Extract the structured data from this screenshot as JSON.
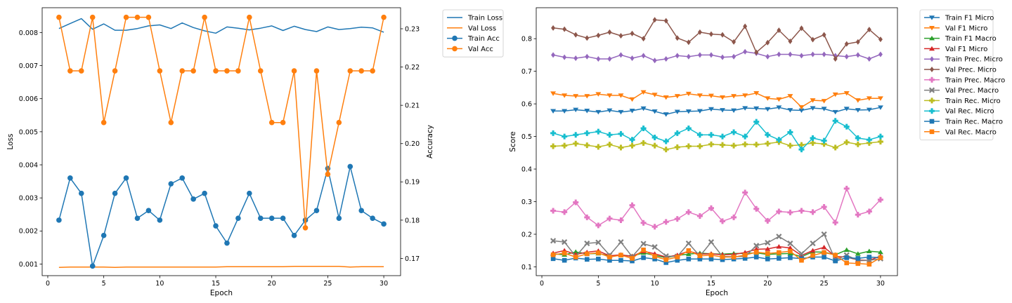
{
  "colors": {
    "blue": "#1f77b4",
    "orange": "#ff7f0e",
    "green": "#2ca02c",
    "red": "#d62728",
    "purple": "#9467bd",
    "brown": "#8c564b",
    "pink": "#e377c2",
    "gray": "#7f7f7f",
    "olive": "#bcbd22",
    "cyan": "#17becf"
  },
  "chart_data": [
    {
      "type": "line",
      "xlabel": "Epoch",
      "ylabel": "Loss",
      "y2label": "Accuracy",
      "xlim": [
        -0.5,
        31.5
      ],
      "ylim": [
        0.00065,
        0.00875
      ],
      "y2lim": [
        0.1655,
        0.2355
      ],
      "xticks": [
        0,
        5,
        10,
        15,
        20,
        25,
        30
      ],
      "yticks": [
        0.001,
        0.002,
        0.003,
        0.004,
        0.005,
        0.006,
        0.007,
        0.008
      ],
      "ytick_labels": [
        "0.001",
        "0.002",
        "0.003",
        "0.004",
        "0.005",
        "0.006",
        "0.007",
        "0.008"
      ],
      "y2ticks": [
        0.17,
        0.18,
        0.19,
        0.2,
        0.21,
        0.22,
        0.23
      ],
      "y2tick_labels": [
        "0.17",
        "0.18",
        "0.19",
        "0.20",
        "0.21",
        "0.22",
        "0.23"
      ],
      "legend_position": "outside-right",
      "grid": false,
      "x": [
        1,
        2,
        3,
        4,
        5,
        6,
        7,
        8,
        9,
        10,
        11,
        12,
        13,
        14,
        15,
        16,
        17,
        18,
        19,
        20,
        21,
        22,
        23,
        24,
        25,
        26,
        27,
        28,
        29,
        30
      ],
      "series": [
        {
          "name": "Train Loss",
          "axis": "left",
          "color": "blue",
          "marker": "none",
          "values": [
            0.00812,
            0.00827,
            0.00842,
            0.0081,
            0.00826,
            0.00807,
            0.00807,
            0.00812,
            0.0082,
            0.00823,
            0.00812,
            0.00829,
            0.00815,
            0.00805,
            0.00798,
            0.00817,
            0.00813,
            0.00808,
            0.00813,
            0.0082,
            0.00806,
            0.00819,
            0.00809,
            0.00803,
            0.00817,
            0.00809,
            0.00812,
            0.00816,
            0.00814,
            0.00801
          ]
        },
        {
          "name": "Val Loss",
          "axis": "left",
          "color": "orange",
          "marker": "none",
          "values": [
            0.0009,
            0.00091,
            0.00091,
            0.00091,
            0.00091,
            0.0009,
            0.00091,
            0.00091,
            0.00091,
            0.00091,
            0.00091,
            0.00091,
            0.00091,
            0.00091,
            0.00091,
            0.00092,
            0.00092,
            0.00092,
            0.00092,
            0.00092,
            0.00092,
            0.00093,
            0.00093,
            0.00093,
            0.00093,
            0.00093,
            0.00091,
            0.00092,
            0.00092,
            0.00092
          ]
        },
        {
          "name": "Train Acc",
          "axis": "right",
          "color": "blue",
          "marker": "circle",
          "values": [
            0.18,
            0.191,
            0.187,
            0.168,
            0.176,
            0.187,
            0.191,
            0.1805,
            0.1825,
            0.18,
            0.1895,
            0.191,
            0.1855,
            0.187,
            0.1785,
            0.174,
            0.1805,
            0.187,
            0.1805,
            0.1805,
            0.1805,
            0.176,
            0.18,
            0.1825,
            0.1935,
            0.1805,
            0.194,
            0.1825,
            0.1805,
            0.179
          ]
        },
        {
          "name": "Val Acc",
          "axis": "right",
          "color": "orange",
          "marker": "circle",
          "values": [
            0.233,
            0.219,
            0.219,
            0.233,
            0.2055,
            0.219,
            0.233,
            0.233,
            0.233,
            0.219,
            0.2055,
            0.219,
            0.219,
            0.233,
            0.219,
            0.219,
            0.219,
            0.233,
            0.219,
            0.2055,
            0.2055,
            0.219,
            0.178,
            0.219,
            0.192,
            0.2055,
            0.219,
            0.219,
            0.219,
            0.233
          ]
        }
      ]
    },
    {
      "type": "line",
      "xlabel": "Epoch",
      "ylabel": "Score",
      "xlim": [
        -0.5,
        31.5
      ],
      "ylim": [
        0.073,
        0.895
      ],
      "xticks": [
        0,
        5,
        10,
        15,
        20,
        25,
        30
      ],
      "yticks": [
        0.1,
        0.2,
        0.3,
        0.4,
        0.5,
        0.6,
        0.7,
        0.8
      ],
      "ytick_labels": [
        "0.1",
        "0.2",
        "0.3",
        "0.4",
        "0.5",
        "0.6",
        "0.7",
        "0.8"
      ],
      "legend_position": "outside-right",
      "grid": false,
      "x": [
        1,
        2,
        3,
        4,
        5,
        6,
        7,
        8,
        9,
        10,
        11,
        12,
        13,
        14,
        15,
        16,
        17,
        18,
        19,
        20,
        21,
        22,
        23,
        24,
        25,
        26,
        27,
        28,
        29,
        30
      ],
      "series": [
        {
          "name": "Train F1 Micro",
          "color": "blue",
          "marker": "triangle-down",
          "values": [
            0.578,
            0.578,
            0.582,
            0.579,
            0.575,
            0.58,
            0.575,
            0.579,
            0.586,
            0.577,
            0.568,
            0.576,
            0.577,
            0.578,
            0.584,
            0.581,
            0.58,
            0.587,
            0.586,
            0.584,
            0.589,
            0.581,
            0.58,
            0.587,
            0.585,
            0.575,
            0.585,
            0.581,
            0.582,
            0.589
          ]
        },
        {
          "name": "Val F1 Micro",
          "color": "orange",
          "marker": "triangle-down",
          "values": [
            0.632,
            0.626,
            0.624,
            0.624,
            0.63,
            0.626,
            0.626,
            0.614,
            0.636,
            0.628,
            0.62,
            0.624,
            0.631,
            0.626,
            0.625,
            0.62,
            0.624,
            0.626,
            0.633,
            0.617,
            0.614,
            0.624,
            0.59,
            0.611,
            0.609,
            0.629,
            0.633,
            0.611,
            0.617,
            0.617
          ]
        },
        {
          "name": "Train F1 Macro",
          "color": "green",
          "marker": "triangle-up",
          "values": [
            0.14,
            0.137,
            0.146,
            0.14,
            0.141,
            0.134,
            0.136,
            0.133,
            0.143,
            0.135,
            0.128,
            0.135,
            0.139,
            0.142,
            0.14,
            0.139,
            0.141,
            0.141,
            0.143,
            0.138,
            0.14,
            0.141,
            0.131,
            0.146,
            0.145,
            0.137,
            0.152,
            0.14,
            0.148,
            0.145
          ]
        },
        {
          "name": "Val F1 Micro",
          "color": "red",
          "marker": "triangle-up",
          "values": [
            0.142,
            0.15,
            0.138,
            0.145,
            0.149,
            0.134,
            0.137,
            0.132,
            0.148,
            0.14,
            0.13,
            0.136,
            0.148,
            0.139,
            0.14,
            0.137,
            0.138,
            0.144,
            0.154,
            0.155,
            0.162,
            0.158,
            0.135,
            0.15,
            0.16,
            0.132,
            0.13,
            0.121,
            0.12,
            0.133
          ]
        },
        {
          "name": "Train Prec. Micro",
          "color": "purple",
          "marker": "diamond",
          "values": [
            0.75,
            0.743,
            0.74,
            0.745,
            0.738,
            0.738,
            0.75,
            0.74,
            0.748,
            0.733,
            0.738,
            0.748,
            0.745,
            0.75,
            0.75,
            0.743,
            0.745,
            0.76,
            0.755,
            0.745,
            0.752,
            0.752,
            0.748,
            0.752,
            0.752,
            0.748,
            0.745,
            0.75,
            0.738,
            0.752
          ]
        },
        {
          "name": "Val Prec. Micro",
          "color": "brown",
          "marker": "diamond",
          "values": [
            0.833,
            0.829,
            0.812,
            0.802,
            0.81,
            0.82,
            0.809,
            0.816,
            0.8,
            0.858,
            0.855,
            0.802,
            0.789,
            0.82,
            0.814,
            0.812,
            0.79,
            0.838,
            0.758,
            0.788,
            0.826,
            0.792,
            0.832,
            0.797,
            0.812,
            0.738,
            0.784,
            0.79,
            0.828,
            0.798
          ]
        },
        {
          "name": "Train Prec. Macro",
          "color": "pink",
          "marker": "plus",
          "values": [
            0.272,
            0.268,
            0.298,
            0.252,
            0.227,
            0.248,
            0.243,
            0.289,
            0.235,
            0.223,
            0.238,
            0.247,
            0.268,
            0.256,
            0.28,
            0.24,
            0.252,
            0.328,
            0.278,
            0.241,
            0.27,
            0.267,
            0.272,
            0.268,
            0.284,
            0.236,
            0.34,
            0.26,
            0.27,
            0.306
          ]
        },
        {
          "name": "Val Prec. Macro",
          "color": "gray",
          "marker": "x",
          "values": [
            0.18,
            0.176,
            0.132,
            0.172,
            0.175,
            0.136,
            0.176,
            0.131,
            0.171,
            0.161,
            0.133,
            0.132,
            0.172,
            0.133,
            0.176,
            0.132,
            0.131,
            0.132,
            0.165,
            0.174,
            0.193,
            0.172,
            0.14,
            0.172,
            0.2,
            0.121,
            0.136,
            0.119,
            0.12,
            0.125
          ]
        },
        {
          "name": "Train Rec. Micro",
          "color": "olive",
          "marker": "plus",
          "values": [
            0.47,
            0.472,
            0.478,
            0.473,
            0.468,
            0.475,
            0.466,
            0.472,
            0.48,
            0.472,
            0.46,
            0.467,
            0.47,
            0.47,
            0.476,
            0.474,
            0.472,
            0.476,
            0.475,
            0.478,
            0.483,
            0.472,
            0.474,
            0.48,
            0.477,
            0.466,
            0.482,
            0.476,
            0.48,
            0.484
          ]
        },
        {
          "name": "Val Rec. Micro",
          "color": "cyan",
          "marker": "plus",
          "values": [
            0.51,
            0.5,
            0.505,
            0.51,
            0.515,
            0.505,
            0.508,
            0.49,
            0.525,
            0.497,
            0.485,
            0.51,
            0.525,
            0.505,
            0.505,
            0.5,
            0.513,
            0.5,
            0.545,
            0.505,
            0.49,
            0.513,
            0.46,
            0.495,
            0.487,
            0.548,
            0.53,
            0.495,
            0.49,
            0.5
          ]
        },
        {
          "name": "Train Rec. Macro",
          "color": "blue",
          "marker": "square",
          "values": [
            0.125,
            0.12,
            0.127,
            0.123,
            0.124,
            0.12,
            0.12,
            0.118,
            0.128,
            0.124,
            0.113,
            0.12,
            0.124,
            0.124,
            0.124,
            0.122,
            0.124,
            0.126,
            0.13,
            0.124,
            0.126,
            0.128,
            0.125,
            0.13,
            0.13,
            0.118,
            0.128,
            0.126,
            0.13,
            0.128
          ]
        },
        {
          "name": "Val Rec. Macro",
          "color": "orange",
          "marker": "square",
          "values": [
            0.137,
            0.142,
            0.13,
            0.14,
            0.143,
            0.13,
            0.136,
            0.126,
            0.152,
            0.132,
            0.122,
            0.13,
            0.15,
            0.134,
            0.136,
            0.13,
            0.13,
            0.136,
            0.145,
            0.141,
            0.144,
            0.148,
            0.12,
            0.135,
            0.144,
            0.136,
            0.112,
            0.11,
            0.108,
            0.128
          ]
        }
      ]
    }
  ]
}
